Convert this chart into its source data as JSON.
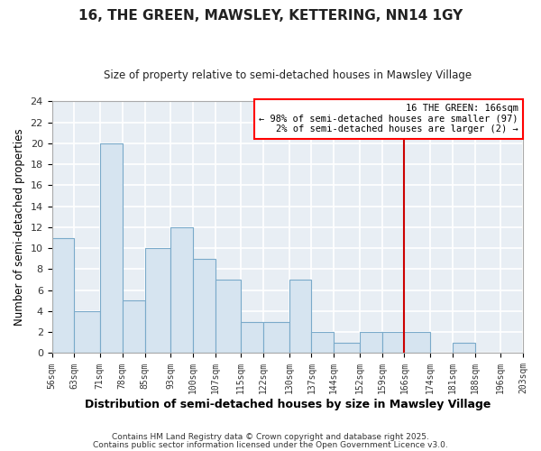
{
  "title": "16, THE GREEN, MAWSLEY, KETTERING, NN14 1GY",
  "subtitle": "Size of property relative to semi-detached houses in Mawsley Village",
  "xlabel": "Distribution of semi-detached houses by size in Mawsley Village",
  "ylabel": "Number of semi-detached properties",
  "bins": [
    56,
    63,
    71,
    78,
    85,
    93,
    100,
    107,
    115,
    122,
    130,
    137,
    144,
    152,
    159,
    166,
    174,
    181,
    188,
    196,
    203
  ],
  "counts": [
    11,
    4,
    20,
    5,
    10,
    12,
    9,
    7,
    3,
    3,
    7,
    2,
    1,
    2,
    2,
    2,
    0,
    1,
    0,
    0
  ],
  "bar_color": "#d6e4f0",
  "bar_edge_color": "#7aaaca",
  "background_color": "#e8eef4",
  "plot_bg_color": "#e8eef4",
  "grid_color": "#ffffff",
  "marker_value": 166,
  "marker_color": "#cc0000",
  "ylim": [
    0,
    24
  ],
  "yticks": [
    0,
    2,
    4,
    6,
    8,
    10,
    12,
    14,
    16,
    18,
    20,
    22,
    24
  ],
  "tick_labels": [
    "56sqm",
    "63sqm",
    "71sqm",
    "78sqm",
    "85sqm",
    "93sqm",
    "100sqm",
    "107sqm",
    "115sqm",
    "122sqm",
    "130sqm",
    "137sqm",
    "144sqm",
    "152sqm",
    "159sqm",
    "166sqm",
    "174sqm",
    "181sqm",
    "188sqm",
    "196sqm",
    "203sqm"
  ],
  "annotation_title": "16 THE GREEN: 166sqm",
  "annotation_line1": "← 98% of semi-detached houses are smaller (97)",
  "annotation_line2": "2% of semi-detached houses are larger (2) →",
  "footer1": "Contains HM Land Registry data © Crown copyright and database right 2025.",
  "footer2": "Contains public sector information licensed under the Open Government Licence v3.0."
}
